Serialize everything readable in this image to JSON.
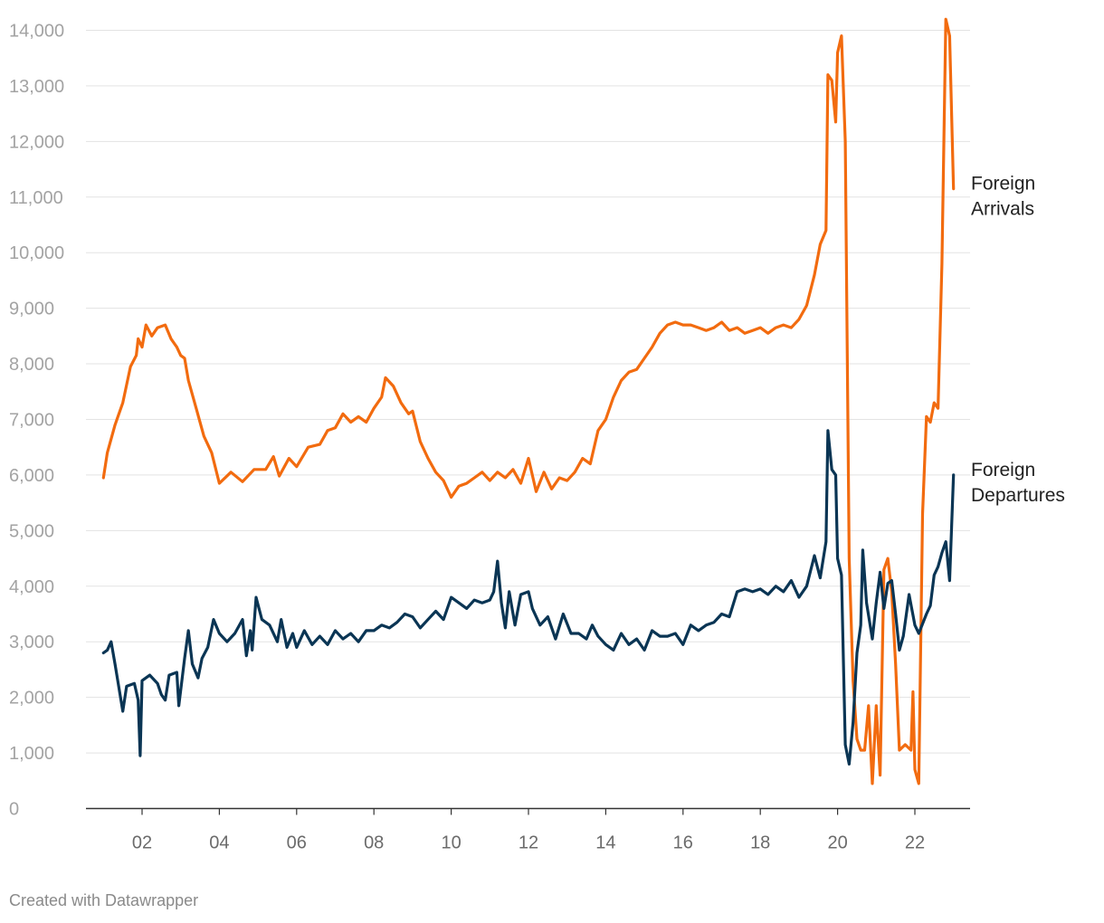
{
  "chart_data": {
    "type": "line",
    "title": "",
    "xlabel": "",
    "ylabel": "",
    "x_range": [
      2001,
      2023
    ],
    "ylim": [
      0,
      14000
    ],
    "y_ticks": [
      0,
      1000,
      2000,
      3000,
      4000,
      5000,
      6000,
      7000,
      8000,
      9000,
      10000,
      11000,
      12000,
      13000,
      14000
    ],
    "y_tick_labels": [
      "0",
      "1,000",
      "2,000",
      "3,000",
      "4,000",
      "5,000",
      "6,000",
      "7,000",
      "8,000",
      "9,000",
      "10,000",
      "11,000",
      "12,000",
      "13,000",
      "14,000"
    ],
    "x_ticks": [
      2002,
      2004,
      2006,
      2008,
      2010,
      2012,
      2014,
      2016,
      2018,
      2020,
      2022
    ],
    "x_tick_labels": [
      "02",
      "04",
      "06",
      "08",
      "10",
      "12",
      "14",
      "16",
      "18",
      "20",
      "22"
    ],
    "grid": true,
    "series": [
      {
        "name": "Foreign Arrivals",
        "label_lines": [
          "Foreign",
          "Arrivals"
        ],
        "color": "#f26b0f",
        "points": [
          [
            2001.0,
            5950
          ],
          [
            2001.1,
            6400
          ],
          [
            2001.3,
            6900
          ],
          [
            2001.5,
            7300
          ],
          [
            2001.7,
            7950
          ],
          [
            2001.85,
            8150
          ],
          [
            2001.9,
            8450
          ],
          [
            2002.0,
            8300
          ],
          [
            2002.1,
            8700
          ],
          [
            2002.25,
            8500
          ],
          [
            2002.4,
            8650
          ],
          [
            2002.6,
            8700
          ],
          [
            2002.75,
            8450
          ],
          [
            2002.9,
            8300
          ],
          [
            2003.0,
            8150
          ],
          [
            2003.1,
            8100
          ],
          [
            2003.2,
            7700
          ],
          [
            2003.4,
            7200
          ],
          [
            2003.6,
            6700
          ],
          [
            2003.8,
            6400
          ],
          [
            2004.0,
            5850
          ],
          [
            2004.3,
            6050
          ],
          [
            2004.6,
            5880
          ],
          [
            2004.9,
            6100
          ],
          [
            2005.2,
            6100
          ],
          [
            2005.4,
            6330
          ],
          [
            2005.55,
            5980
          ],
          [
            2005.8,
            6300
          ],
          [
            2006.0,
            6150
          ],
          [
            2006.3,
            6500
          ],
          [
            2006.6,
            6550
          ],
          [
            2006.8,
            6800
          ],
          [
            2007.0,
            6850
          ],
          [
            2007.2,
            7100
          ],
          [
            2007.4,
            6950
          ],
          [
            2007.6,
            7050
          ],
          [
            2007.8,
            6950
          ],
          [
            2008.0,
            7200
          ],
          [
            2008.2,
            7400
          ],
          [
            2008.3,
            7750
          ],
          [
            2008.5,
            7600
          ],
          [
            2008.7,
            7300
          ],
          [
            2008.9,
            7100
          ],
          [
            2009.0,
            7150
          ],
          [
            2009.2,
            6600
          ],
          [
            2009.4,
            6300
          ],
          [
            2009.6,
            6050
          ],
          [
            2009.8,
            5900
          ],
          [
            2010.0,
            5600
          ],
          [
            2010.2,
            5800
          ],
          [
            2010.4,
            5850
          ],
          [
            2010.6,
            5950
          ],
          [
            2010.8,
            6050
          ],
          [
            2011.0,
            5900
          ],
          [
            2011.2,
            6050
          ],
          [
            2011.4,
            5950
          ],
          [
            2011.6,
            6100
          ],
          [
            2011.8,
            5850
          ],
          [
            2012.0,
            6300
          ],
          [
            2012.2,
            5700
          ],
          [
            2012.4,
            6050
          ],
          [
            2012.6,
            5750
          ],
          [
            2012.8,
            5950
          ],
          [
            2013.0,
            5900
          ],
          [
            2013.2,
            6050
          ],
          [
            2013.4,
            6300
          ],
          [
            2013.6,
            6200
          ],
          [
            2013.8,
            6800
          ],
          [
            2014.0,
            7000
          ],
          [
            2014.2,
            7400
          ],
          [
            2014.4,
            7700
          ],
          [
            2014.6,
            7850
          ],
          [
            2014.8,
            7900
          ],
          [
            2015.0,
            8100
          ],
          [
            2015.2,
            8300
          ],
          [
            2015.4,
            8550
          ],
          [
            2015.6,
            8700
          ],
          [
            2015.8,
            8750
          ],
          [
            2016.0,
            8700
          ],
          [
            2016.2,
            8700
          ],
          [
            2016.4,
            8650
          ],
          [
            2016.6,
            8600
          ],
          [
            2016.8,
            8650
          ],
          [
            2017.0,
            8750
          ],
          [
            2017.2,
            8600
          ],
          [
            2017.4,
            8650
          ],
          [
            2017.6,
            8550
          ],
          [
            2017.8,
            8600
          ],
          [
            2018.0,
            8650
          ],
          [
            2018.2,
            8550
          ],
          [
            2018.4,
            8650
          ],
          [
            2018.6,
            8700
          ],
          [
            2018.8,
            8650
          ],
          [
            2019.0,
            8800
          ],
          [
            2019.2,
            9050
          ],
          [
            2019.4,
            9600
          ],
          [
            2019.55,
            10150
          ],
          [
            2019.7,
            10400
          ],
          [
            2019.75,
            13200
          ],
          [
            2019.85,
            13100
          ],
          [
            2019.95,
            12350
          ],
          [
            2020.0,
            13600
          ],
          [
            2020.1,
            13900
          ],
          [
            2020.2,
            12000
          ],
          [
            2020.3,
            4500
          ],
          [
            2020.4,
            2300
          ],
          [
            2020.5,
            1250
          ],
          [
            2020.6,
            1050
          ],
          [
            2020.7,
            1050
          ],
          [
            2020.8,
            1850
          ],
          [
            2020.9,
            450
          ],
          [
            2021.0,
            1850
          ],
          [
            2021.1,
            600
          ],
          [
            2021.2,
            4300
          ],
          [
            2021.3,
            4500
          ],
          [
            2021.4,
            3900
          ],
          [
            2021.5,
            2600
          ],
          [
            2021.6,
            1050
          ],
          [
            2021.75,
            1150
          ],
          [
            2021.9,
            1050
          ],
          [
            2021.95,
            2100
          ],
          [
            2022.0,
            700
          ],
          [
            2022.1,
            450
          ],
          [
            2022.2,
            5300
          ],
          [
            2022.3,
            7050
          ],
          [
            2022.4,
            6950
          ],
          [
            2022.5,
            7300
          ],
          [
            2022.6,
            7200
          ],
          [
            2022.7,
            9800
          ],
          [
            2022.8,
            14200
          ],
          [
            2022.9,
            13900
          ],
          [
            2023.0,
            11150
          ]
        ]
      },
      {
        "name": "Foreign Departures",
        "label_lines": [
          "Foreign",
          "Departures"
        ],
        "color": "#0a3554",
        "points": [
          [
            2001.0,
            2800
          ],
          [
            2001.1,
            2850
          ],
          [
            2001.2,
            3000
          ],
          [
            2001.3,
            2600
          ],
          [
            2001.5,
            1750
          ],
          [
            2001.6,
            2200
          ],
          [
            2001.8,
            2250
          ],
          [
            2001.9,
            1950
          ],
          [
            2001.95,
            950
          ],
          [
            2002.0,
            2300
          ],
          [
            2002.2,
            2400
          ],
          [
            2002.4,
            2250
          ],
          [
            2002.5,
            2050
          ],
          [
            2002.6,
            1950
          ],
          [
            2002.7,
            2400
          ],
          [
            2002.9,
            2450
          ],
          [
            2002.95,
            1850
          ],
          [
            2003.1,
            2700
          ],
          [
            2003.2,
            3200
          ],
          [
            2003.3,
            2600
          ],
          [
            2003.45,
            2350
          ],
          [
            2003.55,
            2700
          ],
          [
            2003.7,
            2900
          ],
          [
            2003.85,
            3400
          ],
          [
            2004.0,
            3150
          ],
          [
            2004.2,
            3000
          ],
          [
            2004.4,
            3150
          ],
          [
            2004.6,
            3400
          ],
          [
            2004.7,
            2750
          ],
          [
            2004.8,
            3200
          ],
          [
            2004.85,
            2850
          ],
          [
            2004.95,
            3800
          ],
          [
            2005.1,
            3400
          ],
          [
            2005.3,
            3300
          ],
          [
            2005.5,
            3000
          ],
          [
            2005.6,
            3400
          ],
          [
            2005.75,
            2900
          ],
          [
            2005.9,
            3150
          ],
          [
            2006.0,
            2900
          ],
          [
            2006.2,
            3200
          ],
          [
            2006.4,
            2950
          ],
          [
            2006.6,
            3100
          ],
          [
            2006.8,
            2950
          ],
          [
            2007.0,
            3200
          ],
          [
            2007.2,
            3050
          ],
          [
            2007.4,
            3150
          ],
          [
            2007.6,
            3000
          ],
          [
            2007.8,
            3200
          ],
          [
            2008.0,
            3200
          ],
          [
            2008.2,
            3300
          ],
          [
            2008.4,
            3250
          ],
          [
            2008.6,
            3350
          ],
          [
            2008.8,
            3500
          ],
          [
            2009.0,
            3450
          ],
          [
            2009.2,
            3250
          ],
          [
            2009.4,
            3400
          ],
          [
            2009.6,
            3550
          ],
          [
            2009.8,
            3400
          ],
          [
            2010.0,
            3800
          ],
          [
            2010.2,
            3700
          ],
          [
            2010.4,
            3600
          ],
          [
            2010.6,
            3750
          ],
          [
            2010.8,
            3700
          ],
          [
            2011.0,
            3750
          ],
          [
            2011.1,
            3900
          ],
          [
            2011.2,
            4450
          ],
          [
            2011.3,
            3700
          ],
          [
            2011.4,
            3250
          ],
          [
            2011.5,
            3900
          ],
          [
            2011.65,
            3300
          ],
          [
            2011.8,
            3850
          ],
          [
            2012.0,
            3900
          ],
          [
            2012.1,
            3600
          ],
          [
            2012.3,
            3300
          ],
          [
            2012.5,
            3450
          ],
          [
            2012.7,
            3050
          ],
          [
            2012.9,
            3500
          ],
          [
            2013.1,
            3150
          ],
          [
            2013.3,
            3150
          ],
          [
            2013.5,
            3050
          ],
          [
            2013.65,
            3300
          ],
          [
            2013.8,
            3100
          ],
          [
            2014.0,
            2950
          ],
          [
            2014.2,
            2850
          ],
          [
            2014.4,
            3150
          ],
          [
            2014.6,
            2950
          ],
          [
            2014.8,
            3050
          ],
          [
            2015.0,
            2850
          ],
          [
            2015.2,
            3200
          ],
          [
            2015.4,
            3100
          ],
          [
            2015.6,
            3100
          ],
          [
            2015.8,
            3150
          ],
          [
            2016.0,
            2950
          ],
          [
            2016.2,
            3300
          ],
          [
            2016.4,
            3200
          ],
          [
            2016.6,
            3300
          ],
          [
            2016.8,
            3350
          ],
          [
            2017.0,
            3500
          ],
          [
            2017.2,
            3450
          ],
          [
            2017.4,
            3900
          ],
          [
            2017.6,
            3950
          ],
          [
            2017.8,
            3900
          ],
          [
            2018.0,
            3950
          ],
          [
            2018.2,
            3850
          ],
          [
            2018.4,
            4000
          ],
          [
            2018.6,
            3900
          ],
          [
            2018.8,
            4100
          ],
          [
            2019.0,
            3800
          ],
          [
            2019.2,
            4000
          ],
          [
            2019.4,
            4550
          ],
          [
            2019.55,
            4150
          ],
          [
            2019.7,
            4800
          ],
          [
            2019.75,
            6800
          ],
          [
            2019.85,
            6100
          ],
          [
            2019.95,
            6000
          ],
          [
            2020.0,
            4500
          ],
          [
            2020.1,
            4200
          ],
          [
            2020.2,
            1150
          ],
          [
            2020.3,
            800
          ],
          [
            2020.4,
            1550
          ],
          [
            2020.5,
            2800
          ],
          [
            2020.6,
            3300
          ],
          [
            2020.65,
            4650
          ],
          [
            2020.75,
            3700
          ],
          [
            2020.9,
            3050
          ],
          [
            2021.0,
            3700
          ],
          [
            2021.1,
            4250
          ],
          [
            2021.2,
            3600
          ],
          [
            2021.3,
            4050
          ],
          [
            2021.4,
            4100
          ],
          [
            2021.5,
            3500
          ],
          [
            2021.6,
            2850
          ],
          [
            2021.7,
            3100
          ],
          [
            2021.85,
            3850
          ],
          [
            2022.0,
            3300
          ],
          [
            2022.1,
            3150
          ],
          [
            2022.3,
            3500
          ],
          [
            2022.4,
            3650
          ],
          [
            2022.5,
            4200
          ],
          [
            2022.6,
            4350
          ],
          [
            2022.7,
            4600
          ],
          [
            2022.8,
            4800
          ],
          [
            2022.9,
            4100
          ],
          [
            2023.0,
            6000
          ]
        ]
      }
    ]
  },
  "footer": {
    "credit": "Created with Datawrapper"
  }
}
